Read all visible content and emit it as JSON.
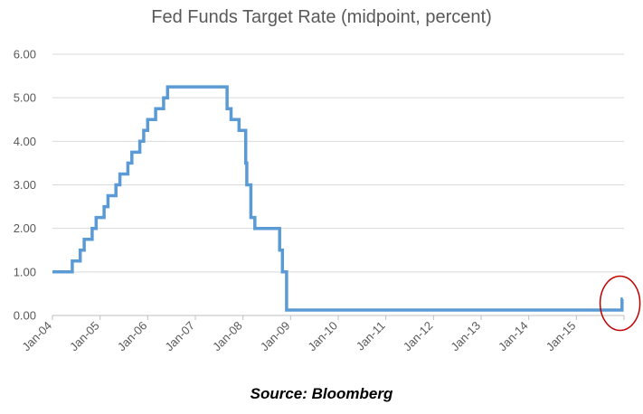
{
  "chart_data": {
    "type": "line",
    "title": "Fed Funds Target Rate (midpoint, percent)",
    "source": "Source: Bloomberg",
    "xlabel": "",
    "ylabel": "",
    "x_ticks": [
      "Jan-04",
      "Jan-05",
      "Jan-06",
      "Jan-07",
      "Jan-08",
      "Jan-09",
      "Jan-10",
      "Jan-11",
      "Jan-12",
      "Jan-13",
      "Jan-14",
      "Jan-15"
    ],
    "y_ticks": [
      "0.00",
      "1.00",
      "2.00",
      "3.00",
      "4.00",
      "5.00",
      "6.00"
    ],
    "xlim": [
      "2004-01",
      "2016-01"
    ],
    "ylim": [
      0,
      6
    ],
    "grid": "horizontal",
    "legend": "none",
    "line_color": "#5b9bd5",
    "annotation": {
      "type": "circle",
      "marks": "Dec-15 rate hike",
      "color": "#c00000"
    },
    "series": [
      {
        "x": [
          "2004-01",
          "2004-06",
          "2004-08",
          "2004-09",
          "2004-11",
          "2004-12",
          "2005-02",
          "2005-03",
          "2005-05",
          "2005-06",
          "2005-08",
          "2005-09",
          "2005-11",
          "2005-12",
          "2006-01",
          "2006-03",
          "2006-05",
          "2006-06",
          "2007-09",
          "2007-10",
          "2007-12",
          "2008-01",
          "2008-01-22",
          "2008-01-30",
          "2008-03",
          "2008-04",
          "2008-10-08",
          "2008-10-29",
          "2008-12",
          "2015-12",
          "2015-12-16"
        ],
        "y": [
          1.0,
          1.25,
          1.5,
          1.75,
          2.0,
          2.25,
          2.5,
          2.75,
          3.0,
          3.25,
          3.5,
          3.75,
          4.0,
          4.25,
          4.5,
          4.75,
          5.0,
          5.25,
          4.75,
          4.5,
          4.25,
          4.25,
          3.5,
          3.0,
          2.25,
          2.0,
          1.5,
          1.0,
          0.125,
          0.125,
          0.375
        ]
      }
    ]
  }
}
